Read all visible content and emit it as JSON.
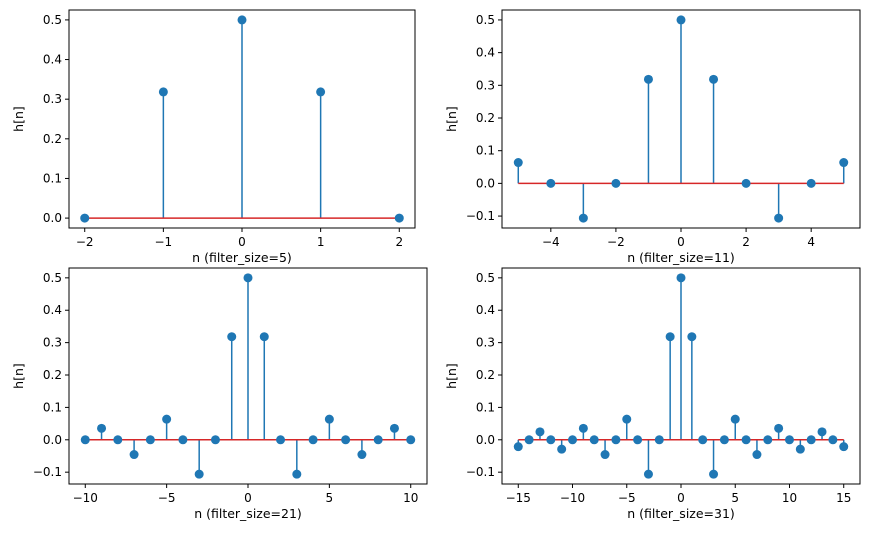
{
  "chart_data": [
    {
      "type": "stem",
      "title": "",
      "xlabel": "n (filter_size=5)",
      "ylabel": "h[n]",
      "x": [
        -2,
        -1,
        0,
        1,
        2
      ],
      "values": [
        0.0,
        0.3183,
        0.5,
        0.3183,
        0.0
      ],
      "xlim": [
        -2.2,
        2.2
      ],
      "ylim": [
        -0.025,
        0.525
      ],
      "xticks": [
        -2,
        -1,
        0,
        1,
        2
      ],
      "xtick_labels": [
        "−2",
        "−1",
        "0",
        "1",
        "2"
      ],
      "yticks": [
        0.0,
        0.1,
        0.2,
        0.3,
        0.4,
        0.5
      ],
      "ytick_labels": [
        "0.0",
        "0.1",
        "0.2",
        "0.3",
        "0.4",
        "0.5"
      ]
    },
    {
      "type": "stem",
      "title": "",
      "xlabel": "n (filter_size=11)",
      "ylabel": "h[n]",
      "x": [
        -5,
        -4,
        -3,
        -2,
        -1,
        0,
        1,
        2,
        3,
        4,
        5
      ],
      "values": [
        0.0637,
        0.0,
        -0.1061,
        0.0,
        0.3183,
        0.5,
        0.3183,
        0.0,
        -0.1061,
        0.0,
        0.0637
      ],
      "xlim": [
        -5.5,
        5.5
      ],
      "ylim": [
        -0.1365,
        0.5304
      ],
      "xticks": [
        -4,
        -2,
        0,
        2,
        4
      ],
      "xtick_labels": [
        "−4",
        "−2",
        "0",
        "2",
        "4"
      ],
      "yticks": [
        -0.1,
        0.0,
        0.1,
        0.2,
        0.3,
        0.4,
        0.5
      ],
      "ytick_labels": [
        "−0.1",
        "0.0",
        "0.1",
        "0.2",
        "0.3",
        "0.4",
        "0.5"
      ]
    },
    {
      "type": "stem",
      "title": "",
      "xlabel": "n (filter_size=21)",
      "ylabel": "h[n]",
      "x": [
        -10,
        -9,
        -8,
        -7,
        -6,
        -5,
        -4,
        -3,
        -2,
        -1,
        0,
        1,
        2,
        3,
        4,
        5,
        6,
        7,
        8,
        9,
        10
      ],
      "values": [
        0.0,
        0.0354,
        0.0,
        -0.0455,
        0.0,
        0.0637,
        0.0,
        -0.1061,
        0.0,
        0.3183,
        0.5,
        0.3183,
        0.0,
        -0.1061,
        0.0,
        0.0637,
        0.0,
        -0.0455,
        0.0,
        0.0354,
        0.0
      ],
      "xlim": [
        -11,
        11
      ],
      "ylim": [
        -0.1365,
        0.5304
      ],
      "xticks": [
        -10,
        -5,
        0,
        5,
        10
      ],
      "xtick_labels": [
        "−10",
        "−5",
        "0",
        "5",
        "10"
      ],
      "yticks": [
        -0.1,
        0.0,
        0.1,
        0.2,
        0.3,
        0.4,
        0.5
      ],
      "ytick_labels": [
        "−0.1",
        "0.0",
        "0.1",
        "0.2",
        "0.3",
        "0.4",
        "0.5"
      ]
    },
    {
      "type": "stem",
      "title": "",
      "xlabel": "n (filter_size=31)",
      "ylabel": "h[n]",
      "x": [
        -15,
        -14,
        -13,
        -12,
        -11,
        -10,
        -9,
        -8,
        -7,
        -6,
        -5,
        -4,
        -3,
        -2,
        -1,
        0,
        1,
        2,
        3,
        4,
        5,
        6,
        7,
        8,
        9,
        10,
        11,
        12,
        13,
        14,
        15
      ],
      "values": [
        -0.0212,
        0.0,
        0.0245,
        0.0,
        -0.0289,
        0.0,
        0.0354,
        0.0,
        -0.0455,
        0.0,
        0.0637,
        0.0,
        -0.1061,
        0.0,
        0.3183,
        0.5,
        0.3183,
        0.0,
        -0.1061,
        0.0,
        0.0637,
        0.0,
        -0.0455,
        0.0,
        0.0354,
        0.0,
        -0.0289,
        0.0,
        0.0245,
        0.0,
        -0.0212
      ],
      "xlim": [
        -16.5,
        16.5
      ],
      "ylim": [
        -0.1365,
        0.5304
      ],
      "xticks": [
        -15,
        -10,
        -5,
        0,
        5,
        10,
        15
      ],
      "xtick_labels": [
        "−15",
        "−10",
        "−5",
        "0",
        "5",
        "10",
        "15"
      ],
      "yticks": [
        -0.1,
        0.0,
        0.1,
        0.2,
        0.3,
        0.4,
        0.5
      ],
      "ytick_labels": [
        "−0.1",
        "0.0",
        "0.1",
        "0.2",
        "0.3",
        "0.4",
        "0.5"
      ]
    }
  ],
  "colors": {
    "stem": "#1f77b4",
    "marker": "#1f77b4",
    "baseline": "#d62728"
  }
}
